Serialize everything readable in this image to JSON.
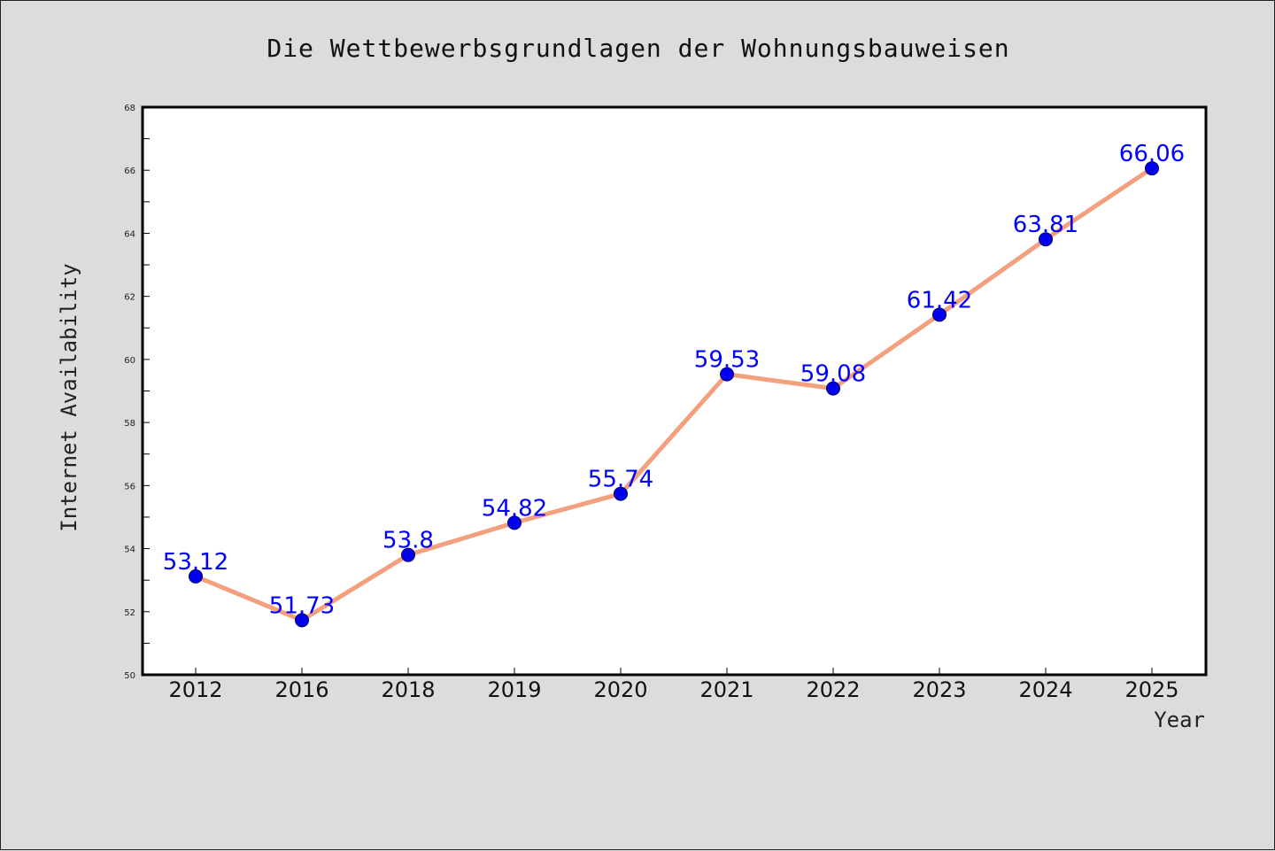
{
  "chart_data": {
    "type": "line",
    "title": "Die Wettbewerbsgrundlagen der Wohnungsbauweisen",
    "xlabel": "Year",
    "ylabel": "Internet Availability",
    "categories": [
      "2012",
      "2016",
      "2018",
      "2019",
      "2020",
      "2021",
      "2022",
      "2023",
      "2024",
      "2025"
    ],
    "series": [
      {
        "values": [
          53.12,
          51.73,
          53.8,
          54.82,
          55.74,
          59.53,
          59.08,
          61.42,
          63.81,
          66.06
        ]
      }
    ],
    "data_labels": [
      "53.12",
      "51.73",
      "53.8",
      "54.82",
      "55.74",
      "59.53",
      "59.08",
      "61.42",
      "63.81",
      "66.06"
    ],
    "ylim": [
      50,
      68
    ],
    "yticks": [
      "50",
      "52",
      "54",
      "56",
      "58",
      "60",
      "62",
      "64",
      "66",
      "68"
    ],
    "grid": false,
    "legend": "none",
    "colors": {
      "line": "#f4a07e",
      "marker": "#0000ee",
      "marker_edge": "#000066",
      "label": "#0000ff",
      "plot_bg": "#ffffff",
      "figure_bg": "#dcdcdc"
    }
  }
}
